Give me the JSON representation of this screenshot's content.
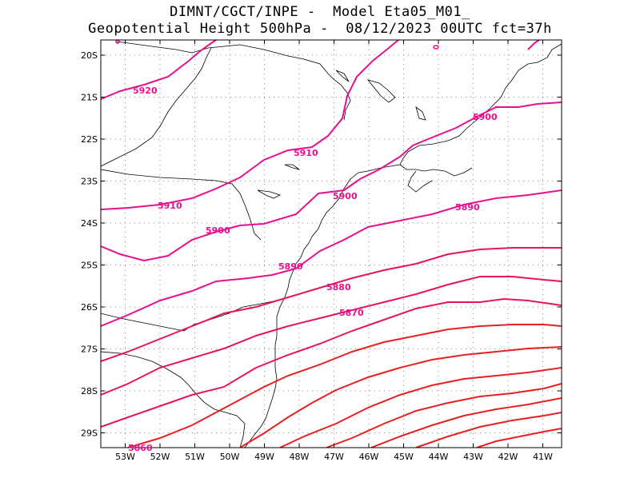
{
  "title_line1": "DIMNT/CGCT/INPE -  Model Eta05_M01_",
  "title_line2": "Geopotential Height 500hPa -  08/12/2023 00UTC fct=37h",
  "lat_labels": [
    "20S",
    "21S",
    "22S",
    "23S",
    "24S",
    "25S",
    "26S",
    "27S",
    "28S",
    "29S"
  ],
  "lon_labels": [
    "53W",
    "52W",
    "51W",
    "50W",
    "49W",
    "48W",
    "47W",
    "46W",
    "45W",
    "44W",
    "43W",
    "42W",
    "41W"
  ],
  "contour_labels": [
    {
      "text": "5920",
      "color": "#e8108e"
    },
    {
      "text": "5910",
      "color": "#e8108e"
    },
    {
      "text": "5910",
      "color": "#e8108e"
    },
    {
      "text": "5900",
      "color": "#e8108e"
    },
    {
      "text": "5900",
      "color": "#e8108e"
    },
    {
      "text": "5900",
      "color": "#e8108e"
    },
    {
      "text": "5890",
      "color": "#e8108e"
    },
    {
      "text": "5890",
      "color": "#e8108e"
    },
    {
      "text": "5880",
      "color": "#e8108e"
    },
    {
      "text": "5870",
      "color": "#e8108e"
    },
    {
      "text": "5860",
      "color": "#e8108e"
    }
  ],
  "colors": {
    "contour_magenta": "#e8108e",
    "contour_pinkred": "#e8145a",
    "contour_red": "#e82020",
    "grid": "#888888",
    "coast": "#000000"
  }
}
